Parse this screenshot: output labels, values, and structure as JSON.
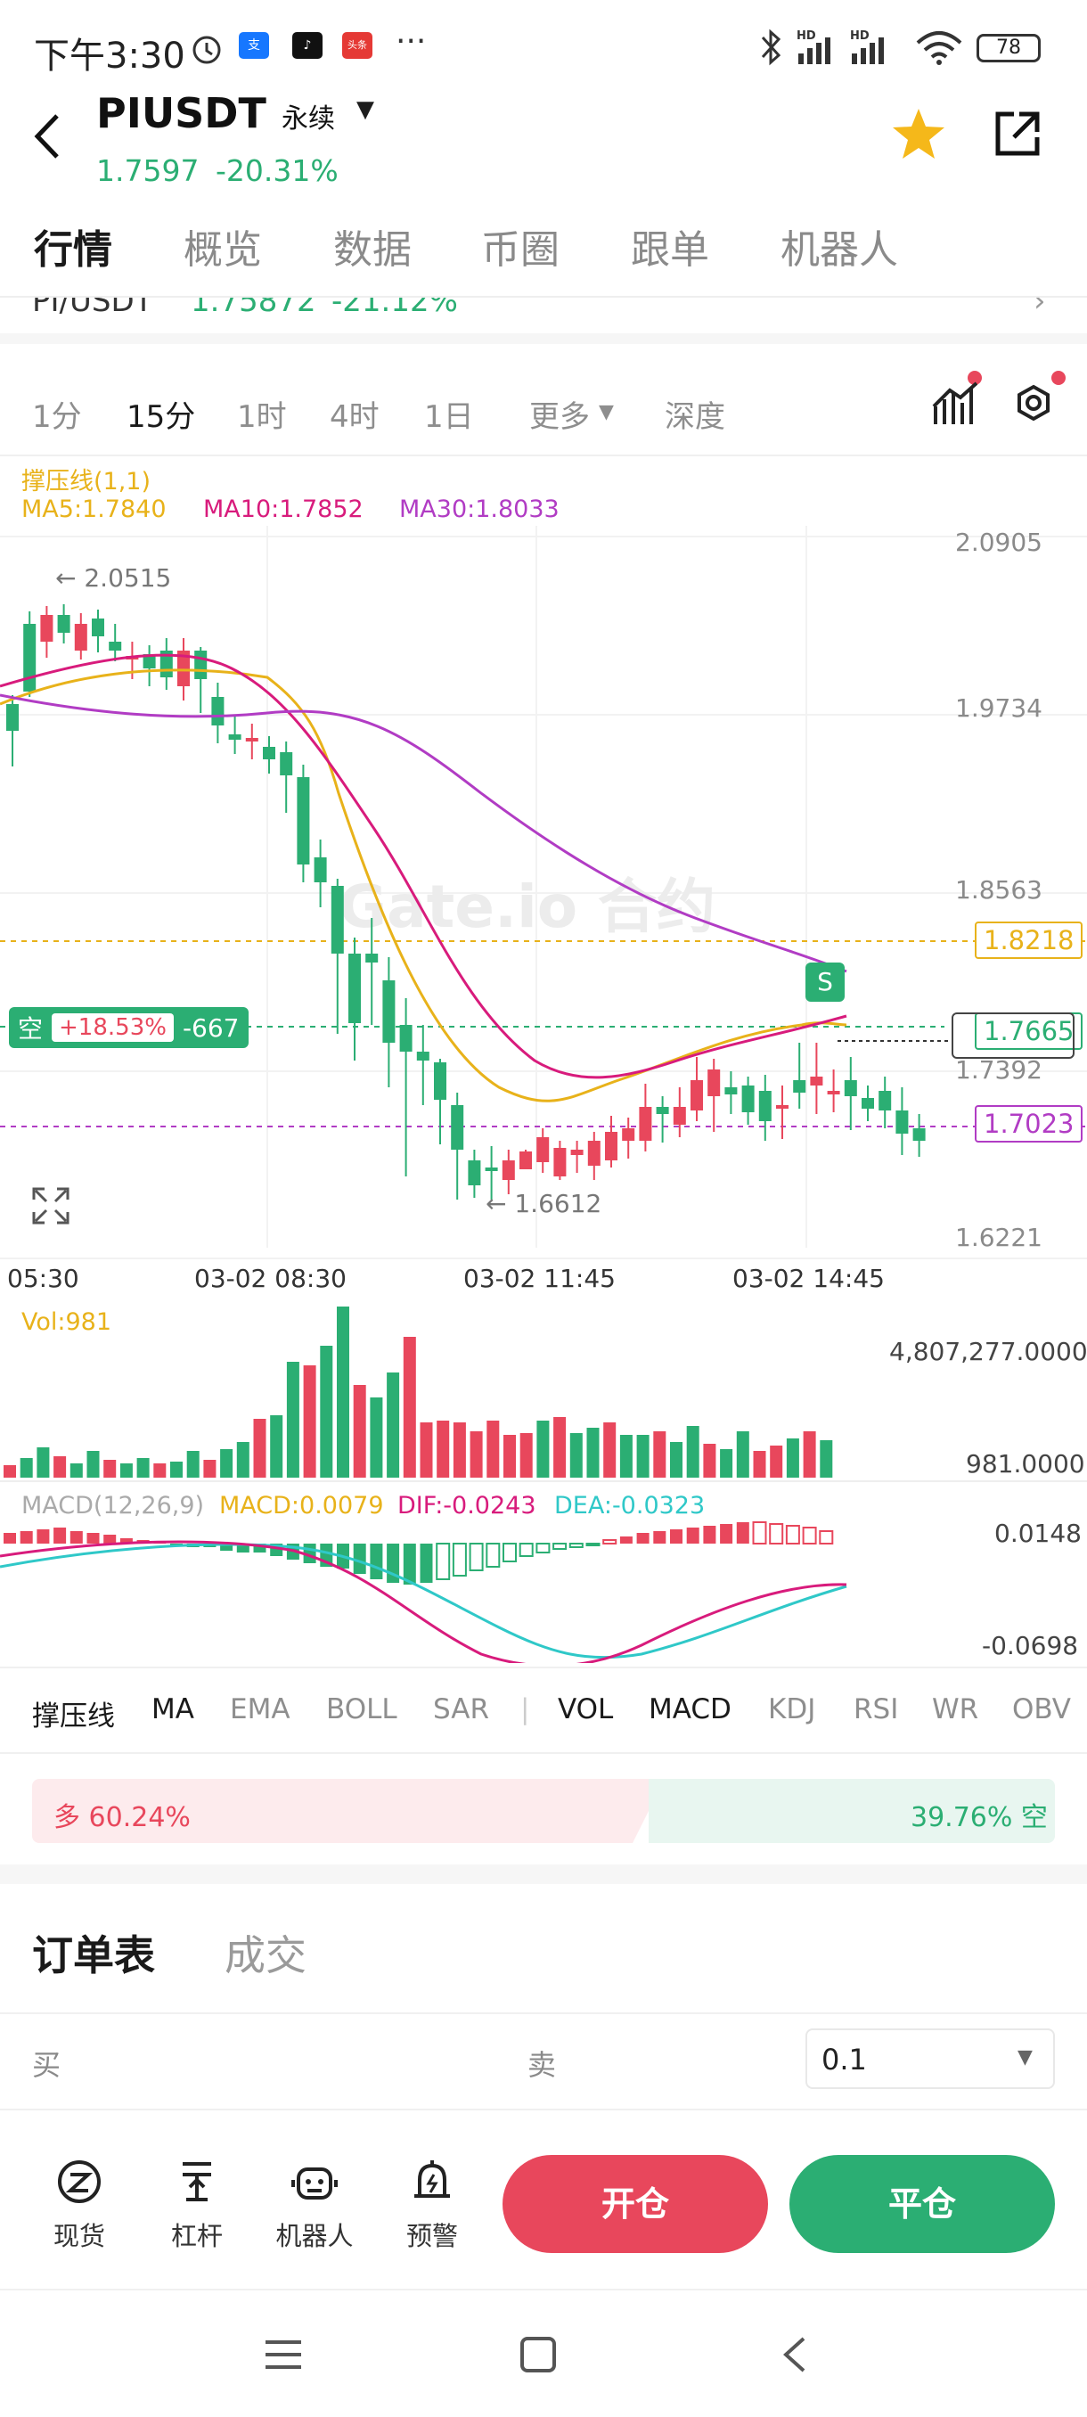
{
  "status_bar": {
    "time": "下午3:30",
    "battery": "78",
    "icon_badges": [
      "支",
      "♪",
      "头条"
    ]
  },
  "header": {
    "symbol": "PIUSDT",
    "contract_type": "永续",
    "last_price": "1.7597",
    "change_pct": "-20.31%"
  },
  "main_tabs": [
    "行情",
    "概览",
    "数据",
    "币圈",
    "跟单",
    "机器人"
  ],
  "spot_ref": {
    "symbol": "PI/USDT",
    "price": "1.75872",
    "change": "-21.12%"
  },
  "timeframes": [
    "1分",
    "15分",
    "1时",
    "4时",
    "1日",
    "更多",
    "深度"
  ],
  "legend": {
    "sr_line": "撑压线(1,1)",
    "ma5": "MA5:1.7840",
    "ma10": "MA10:1.7852",
    "ma30": "MA30:1.8033"
  },
  "watermark": "Gate.io 合约",
  "position_tag": {
    "side": "空",
    "pnl": "+18.53%",
    "qty": "-667"
  },
  "price_axis": [
    "2.0905",
    "1.9734",
    "1.8563",
    "1.7392",
    "1.6221"
  ],
  "price_tags": {
    "resistance": "1.8218",
    "current": "1.7665",
    "support": "1.7023"
  },
  "annotations": {
    "high": "← 2.0515",
    "low": "← 1.6612",
    "sell_marker": "S"
  },
  "time_axis": [
    "05:30",
    "03-02 08:30",
    "03-02 11:45",
    "03-02 14:45"
  ],
  "volume": {
    "label": "Vol:981",
    "max": "4,807,277.0000",
    "current": "981.0000"
  },
  "macd": {
    "params": "MACD(12,26,9)",
    "macd": "MACD:0.0079",
    "dif": "DIF:-0.0243",
    "dea": "DEA:-0.0323",
    "top": "0.0148",
    "bottom": "-0.0698"
  },
  "indicator_tabs": [
    "撑压线",
    "MA",
    "EMA",
    "BOLL",
    "SAR",
    "VOL",
    "MACD",
    "KDJ",
    "RSI",
    "WR",
    "OBV"
  ],
  "long_short": {
    "long_label": "多 60.24%",
    "short_label": "39.76% 空",
    "long_ratio": 0.6024
  },
  "orderbook": {
    "tab_active": "订单表",
    "tab_other": "成交",
    "buy": "买",
    "sell": "卖",
    "precision": "0.1"
  },
  "bottom_nav": [
    "现货",
    "杠杆",
    "机器人",
    "预警"
  ],
  "actions": {
    "open": "开仓",
    "close": "平仓"
  },
  "colors": {
    "green": "#2bae73",
    "red": "#e8475c",
    "ma5": "#e8b21a",
    "ma10": "#d81b7c",
    "ma30": "#b13cc4",
    "dea": "#2fc8c8"
  }
}
